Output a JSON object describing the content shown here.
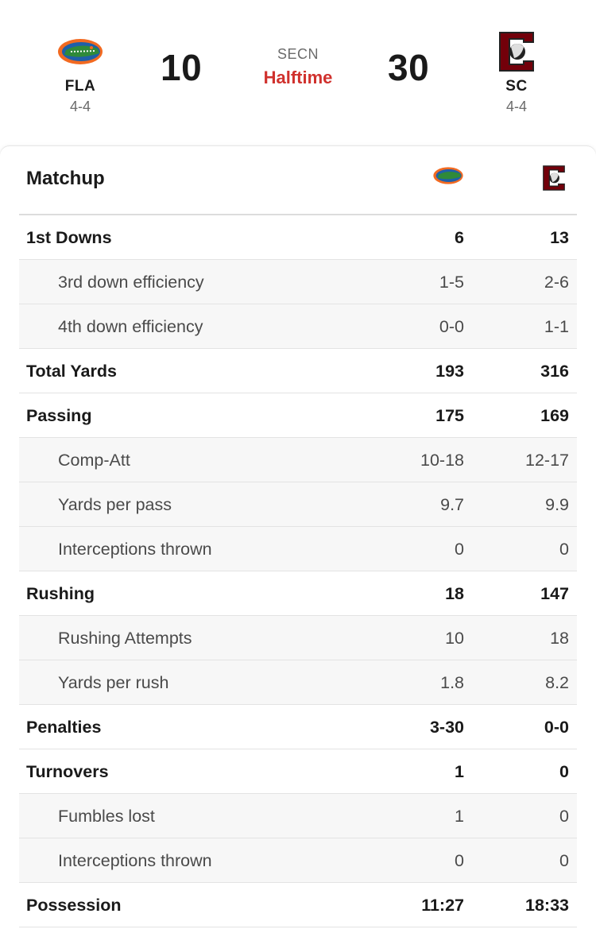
{
  "header": {
    "away": {
      "abbr": "FLA",
      "record": "4-4",
      "score": "10",
      "logo": "gators-logo"
    },
    "home": {
      "abbr": "SC",
      "record": "4-4",
      "score": "30",
      "logo": "gamecocks-logo"
    },
    "network": "SECN",
    "period": "Halftime",
    "colors": {
      "period": "#d0312d",
      "fla_orange": "#f26a21",
      "fla_blue": "#1f5fa8",
      "sc_garnet": "#73000a"
    }
  },
  "matchup": {
    "title": "Matchup",
    "rows": [
      {
        "label": "1st Downs",
        "away": "6",
        "home": "13",
        "sub": false
      },
      {
        "label": "3rd down efficiency",
        "away": "1-5",
        "home": "2-6",
        "sub": true
      },
      {
        "label": "4th down efficiency",
        "away": "0-0",
        "home": "1-1",
        "sub": true
      },
      {
        "label": "Total Yards",
        "away": "193",
        "home": "316",
        "sub": false
      },
      {
        "label": "Passing",
        "away": "175",
        "home": "169",
        "sub": false
      },
      {
        "label": "Comp-Att",
        "away": "10-18",
        "home": "12-17",
        "sub": true
      },
      {
        "label": "Yards per pass",
        "away": "9.7",
        "home": "9.9",
        "sub": true
      },
      {
        "label": "Interceptions thrown",
        "away": "0",
        "home": "0",
        "sub": true
      },
      {
        "label": "Rushing",
        "away": "18",
        "home": "147",
        "sub": false
      },
      {
        "label": "Rushing Attempts",
        "away": "10",
        "home": "18",
        "sub": true
      },
      {
        "label": "Yards per rush",
        "away": "1.8",
        "home": "8.2",
        "sub": true
      },
      {
        "label": "Penalties",
        "away": "3-30",
        "home": "0-0",
        "sub": false
      },
      {
        "label": "Turnovers",
        "away": "1",
        "home": "0",
        "sub": false
      },
      {
        "label": "Fumbles lost",
        "away": "1",
        "home": "0",
        "sub": true
      },
      {
        "label": "Interceptions thrown",
        "away": "0",
        "home": "0",
        "sub": true
      },
      {
        "label": "Possession",
        "away": "11:27",
        "home": "18:33",
        "sub": false
      }
    ]
  }
}
